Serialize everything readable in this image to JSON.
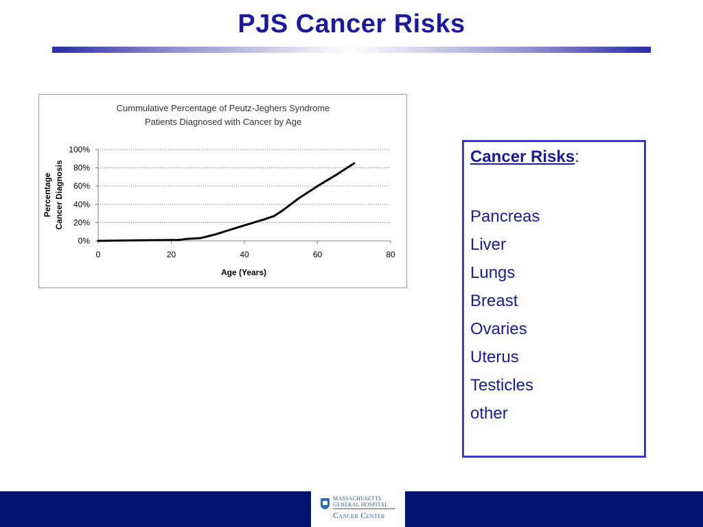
{
  "slide": {
    "title": "PJS Cancer Risks"
  },
  "chart_data": {
    "type": "line",
    "title": "Cummulative Percentage of Peutz-Jeghers Syndrome",
    "subtitle": "Patients Diagnosed with Cancer by Age",
    "xlabel": "Age (Years)",
    "ylabel_line1": "Percentage",
    "ylabel_line2": "Cancer Diagnosis",
    "xlim": [
      0,
      80
    ],
    "ylim": [
      0,
      100
    ],
    "xticks": [
      0,
      20,
      40,
      60,
      80
    ],
    "xtick_labels": [
      "0",
      "20",
      "40",
      "60",
      "80"
    ],
    "yticks": [
      0,
      20,
      40,
      60,
      80,
      100
    ],
    "ytick_labels": [
      "0%",
      "20%",
      "40%",
      "60%",
      "80%",
      "100%"
    ],
    "grid": "horizontal-dotted",
    "series": [
      {
        "color": "#000000",
        "x": [
          0,
          10,
          20,
          22,
          24,
          28,
          32,
          36,
          40,
          45,
          48,
          50,
          55,
          60,
          65,
          70
        ],
        "y": [
          0,
          0.5,
          1,
          1,
          2,
          3,
          7,
          12,
          17,
          23,
          27,
          32,
          47,
          60,
          72,
          85
        ]
      }
    ]
  },
  "risk_box": {
    "heading": "Cancer Risks",
    "heading_suffix": ":",
    "items": [
      "Pancreas",
      "Liver",
      "Lungs",
      "Breast",
      "Ovaries",
      "Uterus",
      "Testicles",
      "other"
    ]
  },
  "footer": {
    "logo_line1": "MASSACHUSETTS",
    "logo_line2": "GENERAL HOSPITAL",
    "logo_line3": "Cancer Center"
  }
}
